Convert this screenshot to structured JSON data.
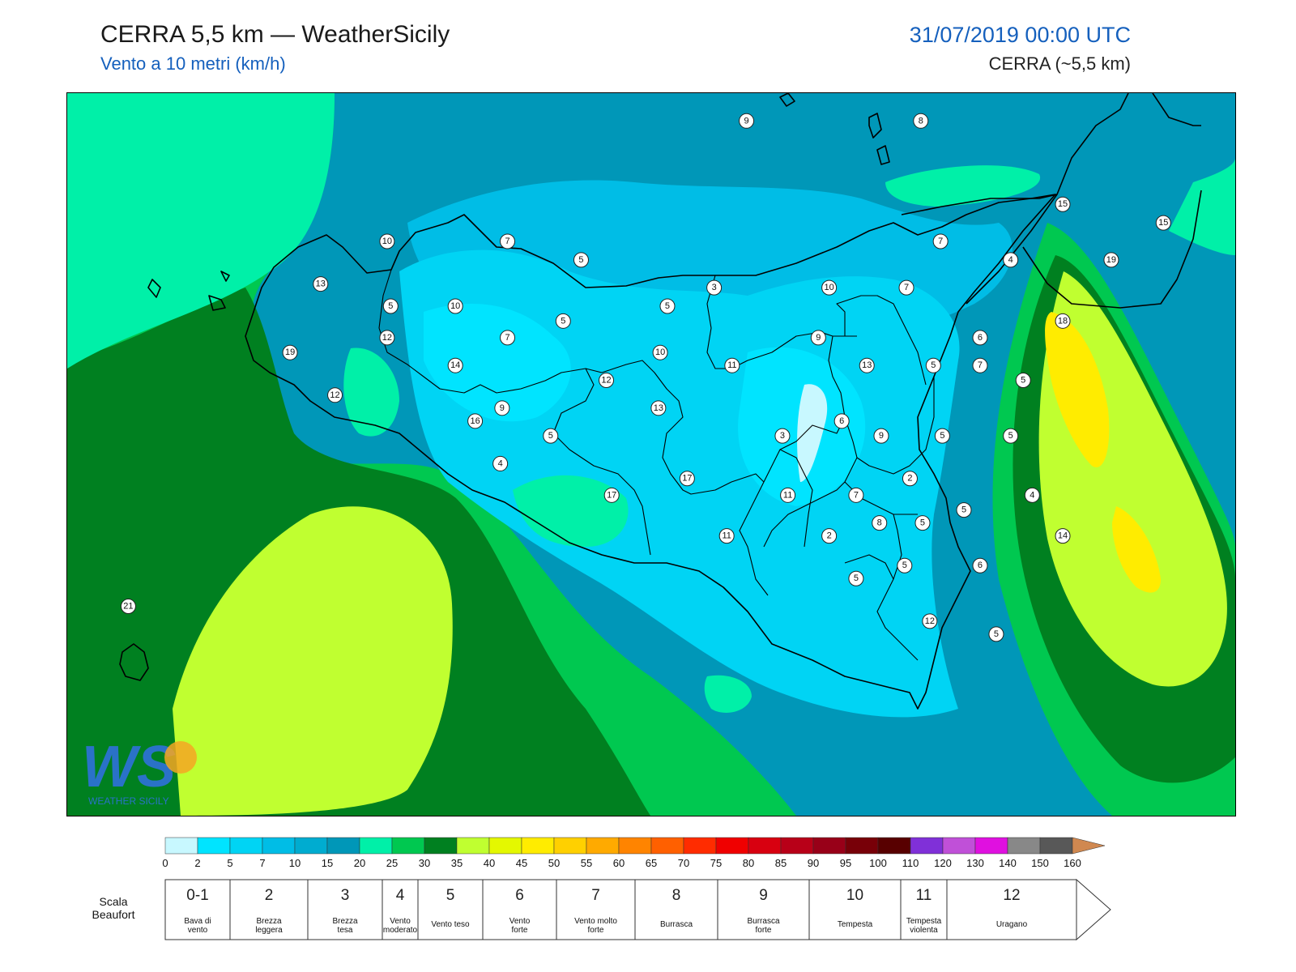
{
  "header": {
    "title": "CERRA 5,5 km — WeatherSicily",
    "subtitle": "Vento a 10 metri (km/h)",
    "datetime": "31/07/2019 00:00 UTC",
    "model": "CERRA (~5,5 km)"
  },
  "logo": {
    "letters": "WS",
    "text": "WEATHER SICILY"
  },
  "stations": [
    {
      "label": "9",
      "lon": 14.28,
      "lat": 38.95
    },
    {
      "label": "8",
      "lon": 15.25,
      "lat": 38.95
    },
    {
      "label": "15",
      "lon": 16.04,
      "lat": 38.5
    },
    {
      "label": "15",
      "lon": 16.6,
      "lat": 38.4
    },
    {
      "label": "10",
      "lon": 12.28,
      "lat": 38.3
    },
    {
      "label": "7",
      "lon": 12.95,
      "lat": 38.3
    },
    {
      "label": "5",
      "lon": 13.36,
      "lat": 38.2
    },
    {
      "label": "7",
      "lon": 15.36,
      "lat": 38.3
    },
    {
      "label": "4",
      "lon": 15.75,
      "lat": 38.2
    },
    {
      "label": "19",
      "lon": 16.31,
      "lat": 38.2
    },
    {
      "label": "13",
      "lon": 11.91,
      "lat": 38.07
    },
    {
      "label": "3",
      "lon": 14.1,
      "lat": 38.05
    },
    {
      "label": "10",
      "lon": 14.74,
      "lat": 38.05
    },
    {
      "label": "7",
      "lon": 15.17,
      "lat": 38.05
    },
    {
      "label": "10",
      "lon": 12.66,
      "lat": 37.95
    },
    {
      "label": "5",
      "lon": 12.3,
      "lat": 37.95
    },
    {
      "label": "5",
      "lon": 13.84,
      "lat": 37.95
    },
    {
      "label": "5",
      "lon": 13.26,
      "lat": 37.87
    },
    {
      "label": "18",
      "lon": 16.04,
      "lat": 37.87
    },
    {
      "label": "12",
      "lon": 12.28,
      "lat": 37.78
    },
    {
      "label": "7",
      "lon": 12.95,
      "lat": 37.78
    },
    {
      "label": "9",
      "lon": 14.68,
      "lat": 37.78
    },
    {
      "label": "6",
      "lon": 15.58,
      "lat": 37.78
    },
    {
      "label": "19",
      "lon": 11.74,
      "lat": 37.7
    },
    {
      "label": "14",
      "lon": 12.66,
      "lat": 37.63
    },
    {
      "label": "10",
      "lon": 13.8,
      "lat": 37.7
    },
    {
      "label": "11",
      "lon": 14.2,
      "lat": 37.63
    },
    {
      "label": "13",
      "lon": 14.95,
      "lat": 37.63
    },
    {
      "label": "5",
      "lon": 15.32,
      "lat": 37.63
    },
    {
      "label": "7",
      "lon": 15.58,
      "lat": 37.63
    },
    {
      "label": "12",
      "lon": 13.5,
      "lat": 37.55
    },
    {
      "label": "5",
      "lon": 15.82,
      "lat": 37.55
    },
    {
      "label": "12",
      "lon": 11.99,
      "lat": 37.47
    },
    {
      "label": "9",
      "lon": 12.92,
      "lat": 37.4
    },
    {
      "label": "13",
      "lon": 13.79,
      "lat": 37.4
    },
    {
      "label": "16",
      "lon": 12.77,
      "lat": 37.33
    },
    {
      "label": "6",
      "lon": 14.81,
      "lat": 37.33
    },
    {
      "label": "5",
      "lon": 13.19,
      "lat": 37.25
    },
    {
      "label": "3",
      "lon": 14.48,
      "lat": 37.25
    },
    {
      "label": "9",
      "lon": 15.03,
      "lat": 37.25
    },
    {
      "label": "5",
      "lon": 15.37,
      "lat": 37.25
    },
    {
      "label": "5",
      "lon": 15.75,
      "lat": 37.25
    },
    {
      "label": "4",
      "lon": 12.91,
      "lat": 37.1
    },
    {
      "label": "17",
      "lon": 13.95,
      "lat": 37.02
    },
    {
      "label": "2",
      "lon": 15.19,
      "lat": 37.02
    },
    {
      "label": "17",
      "lon": 13.53,
      "lat": 36.93
    },
    {
      "label": "11",
      "lon": 14.51,
      "lat": 36.93
    },
    {
      "label": "7",
      "lon": 14.89,
      "lat": 36.93
    },
    {
      "label": "4",
      "lon": 15.87,
      "lat": 36.93
    },
    {
      "label": "5",
      "lon": 15.49,
      "lat": 36.85
    },
    {
      "label": "8",
      "lon": 15.02,
      "lat": 36.78
    },
    {
      "label": "5",
      "lon": 15.26,
      "lat": 36.78
    },
    {
      "label": "14",
      "lon": 16.04,
      "lat": 36.71
    },
    {
      "label": "11",
      "lon": 14.17,
      "lat": 36.71
    },
    {
      "label": "2",
      "lon": 14.74,
      "lat": 36.71
    },
    {
      "label": "5",
      "lon": 15.16,
      "lat": 36.55
    },
    {
      "label": "6",
      "lon": 15.58,
      "lat": 36.55
    },
    {
      "label": "5",
      "lon": 14.89,
      "lat": 36.48
    },
    {
      "label": "21",
      "lon": 10.84,
      "lat": 36.33
    },
    {
      "label": "12",
      "lon": 15.3,
      "lat": 36.25
    },
    {
      "label": "5",
      "lon": 15.67,
      "lat": 36.18
    }
  ],
  "colorbar": {
    "ticks": [
      "0",
      "2",
      "5",
      "7",
      "10",
      "15",
      "20",
      "25",
      "30",
      "35",
      "40",
      "45",
      "50",
      "55",
      "60",
      "65",
      "70",
      "75",
      "80",
      "85",
      "90",
      "95",
      "100",
      "110",
      "120",
      "130",
      "140",
      "150",
      "160"
    ],
    "colors": [
      "#c8f8ff",
      "#00e4ff",
      "#00d4f4",
      "#00bde6",
      "#00acd0",
      "#0097b8",
      "#00f0a8",
      "#00c850",
      "#008020",
      "#c0ff30",
      "#e4f800",
      "#ffec00",
      "#ffd000",
      "#ffaa00",
      "#ff8400",
      "#ff6000",
      "#ff2c00",
      "#f00000",
      "#d80010",
      "#b80018",
      "#980018",
      "#780008",
      "#580000",
      "#8030d8",
      "#c050d8",
      "#e010e0",
      "#888888",
      "#585858",
      "#000000",
      "#884830",
      "#d08850"
    ]
  },
  "beaufort": {
    "heading": [
      "Scala",
      "Beaufort"
    ],
    "classes": [
      {
        "force": "0-1",
        "lines": [
          "Bava di",
          "vento"
        ]
      },
      {
        "force": "2",
        "lines": [
          "Brezza",
          "leggera"
        ]
      },
      {
        "force": "3",
        "lines": [
          "Brezza",
          "tesa"
        ]
      },
      {
        "force": "4",
        "lines": [
          "Vento",
          "moderato"
        ]
      },
      {
        "force": "5",
        "lines": [
          "Vento teso"
        ]
      },
      {
        "force": "6",
        "lines": [
          "Vento",
          "forte"
        ]
      },
      {
        "force": "7",
        "lines": [
          "Vento molto",
          "forte"
        ]
      },
      {
        "force": "8",
        "lines": [
          "Burrasca"
        ]
      },
      {
        "force": "9",
        "lines": [
          "Burrasca",
          "forte"
        ]
      },
      {
        "force": "10",
        "lines": [
          "Tempesta"
        ]
      },
      {
        "force": "11",
        "lines": [
          "Tempesta",
          "violenta"
        ]
      },
      {
        "force": "12",
        "lines": [
          "Uragano"
        ]
      }
    ]
  }
}
